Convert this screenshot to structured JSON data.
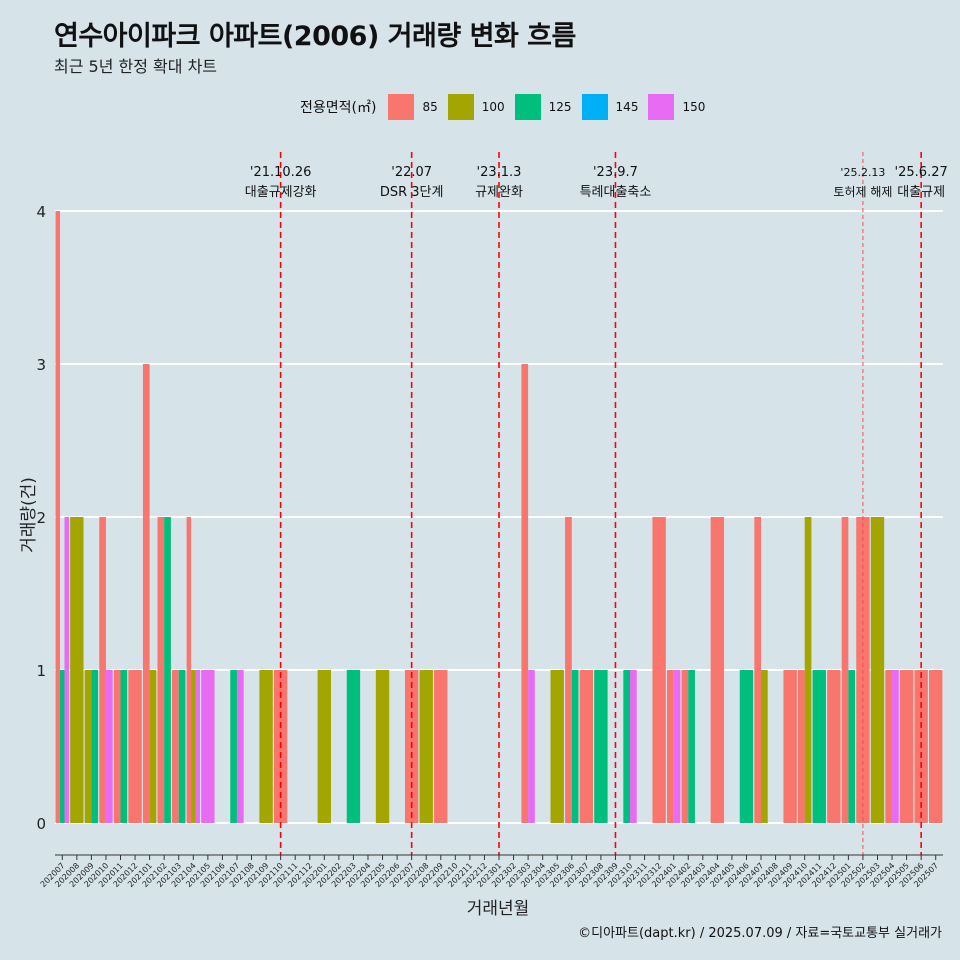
{
  "header": {
    "title": "연수아이파크 아파트(2006) 거래량 변화 흐름",
    "subtitle": "최근 5년 한정 확대 차트"
  },
  "legend": {
    "title": "전용면적(㎡)",
    "items": [
      {
        "label": "85",
        "color": "#f8766d"
      },
      {
        "label": "100",
        "color": "#a3a500"
      },
      {
        "label": "125",
        "color": "#00bf7d"
      },
      {
        "label": "145",
        "color": "#00b0f6"
      },
      {
        "label": "150",
        "color": "#e76bf3"
      }
    ]
  },
  "caption": "©디아파트(dapt.kr) / 2025.07.09 / 자료=국토교통부 실거래가",
  "chart_data": {
    "type": "bar",
    "xlabel": "거래년월",
    "ylabel": "거래량(건)",
    "ylim": [
      0,
      4
    ],
    "yticks": [
      0,
      1,
      2,
      3,
      4
    ],
    "categories": [
      "202007",
      "202008",
      "202009",
      "202010",
      "202011",
      "202012",
      "202101",
      "202102",
      "202103",
      "202104",
      "202105",
      "202106",
      "202107",
      "202108",
      "202109",
      "202110",
      "202111",
      "202112",
      "202201",
      "202202",
      "202203",
      "202204",
      "202205",
      "202206",
      "202207",
      "202208",
      "202209",
      "202210",
      "202211",
      "202212",
      "202301",
      "202302",
      "202303",
      "202304",
      "202305",
      "202306",
      "202307",
      "202308",
      "202309",
      "202310",
      "202311",
      "202312",
      "202401",
      "202402",
      "202403",
      "202404",
      "202405",
      "202406",
      "202407",
      "202408",
      "202409",
      "202410",
      "202411",
      "202412",
      "202501",
      "202502",
      "202503",
      "202504",
      "202505",
      "202506",
      "202507"
    ],
    "series": [
      {
        "name": "85",
        "color": "#f8766d",
        "values": [
          4,
          0,
          0,
          2,
          1,
          1,
          3,
          2,
          1,
          2,
          0,
          0,
          0,
          0,
          0,
          1,
          0,
          0,
          0,
          0,
          0,
          0,
          0,
          0,
          1,
          0,
          1,
          0,
          0,
          0,
          0,
          0,
          3,
          0,
          0,
          2,
          1,
          0,
          0,
          0,
          0,
          2,
          1,
          1,
          0,
          2,
          0,
          0,
          2,
          0,
          1,
          1,
          0,
          1,
          2,
          2,
          0,
          1,
          1,
          1,
          1
        ]
      },
      {
        "name": "100",
        "color": "#a3a500",
        "values": [
          0,
          2,
          1,
          0,
          0,
          0,
          1,
          0,
          0,
          1,
          0,
          0,
          0,
          0,
          1,
          0,
          0,
          0,
          1,
          0,
          0,
          0,
          1,
          0,
          0,
          1,
          0,
          0,
          0,
          0,
          0,
          0,
          0,
          0,
          1,
          0,
          0,
          0,
          0,
          0,
          0,
          0,
          0,
          0,
          0,
          0,
          0,
          0,
          1,
          0,
          0,
          2,
          0,
          0,
          0,
          0,
          2,
          0,
          0,
          0,
          0
        ]
      },
      {
        "name": "125",
        "color": "#00bf7d",
        "values": [
          1,
          0,
          1,
          0,
          1,
          0,
          0,
          2,
          1,
          0,
          0,
          0,
          1,
          0,
          0,
          0,
          0,
          0,
          0,
          0,
          1,
          0,
          0,
          0,
          0,
          0,
          0,
          0,
          0,
          0,
          0,
          0,
          0,
          0,
          0,
          1,
          0,
          1,
          0,
          1,
          0,
          0,
          0,
          1,
          0,
          0,
          0,
          1,
          0,
          0,
          0,
          0,
          1,
          0,
          1,
          0,
          0,
          0,
          0,
          0,
          0
        ]
      },
      {
        "name": "145",
        "color": "#00b0f6",
        "values": [
          0,
          0,
          0,
          0,
          0,
          0,
          0,
          0,
          0,
          0,
          0,
          0,
          0,
          0,
          0,
          0,
          0,
          0,
          0,
          0,
          0,
          0,
          0,
          0,
          0,
          0,
          0,
          0,
          0,
          0,
          0,
          0,
          0,
          0,
          0,
          0,
          0,
          0,
          0,
          0,
          0,
          0,
          0,
          0,
          0,
          0,
          0,
          0,
          0,
          0,
          0,
          0,
          0,
          0,
          0,
          0,
          0,
          0,
          0,
          0,
          0
        ]
      },
      {
        "name": "150",
        "color": "#e76bf3",
        "values": [
          2,
          0,
          0,
          1,
          0,
          0,
          0,
          0,
          0,
          1,
          1,
          0,
          1,
          0,
          0,
          0,
          0,
          0,
          0,
          0,
          0,
          0,
          0,
          0,
          0,
          0,
          0,
          0,
          0,
          0,
          0,
          0,
          1,
          0,
          0,
          0,
          0,
          0,
          0,
          1,
          0,
          0,
          1,
          0,
          0,
          0,
          0,
          0,
          0,
          0,
          0,
          0,
          0,
          0,
          0,
          0,
          0,
          1,
          0,
          0,
          0
        ]
      }
    ],
    "annotations": [
      {
        "category": "202110",
        "date": "'21.10.26",
        "label": "대출규제강화",
        "style": "dashed"
      },
      {
        "category": "202207",
        "date": "'22.07",
        "label": "DSR 3단계",
        "style": "dashed"
      },
      {
        "category": "202301",
        "date": "'23.1.3",
        "label": "규제완화",
        "style": "dashed"
      },
      {
        "category": "202309",
        "date": "'23.9.7",
        "label": "특례대출축소",
        "style": "dashed"
      },
      {
        "category": "202502",
        "date": "'25.2.13",
        "label": "토허제 해제",
        "style": "thin"
      },
      {
        "category": "202506",
        "date": "'25.6.27",
        "label": "대출규제",
        "style": "dashed"
      }
    ]
  }
}
